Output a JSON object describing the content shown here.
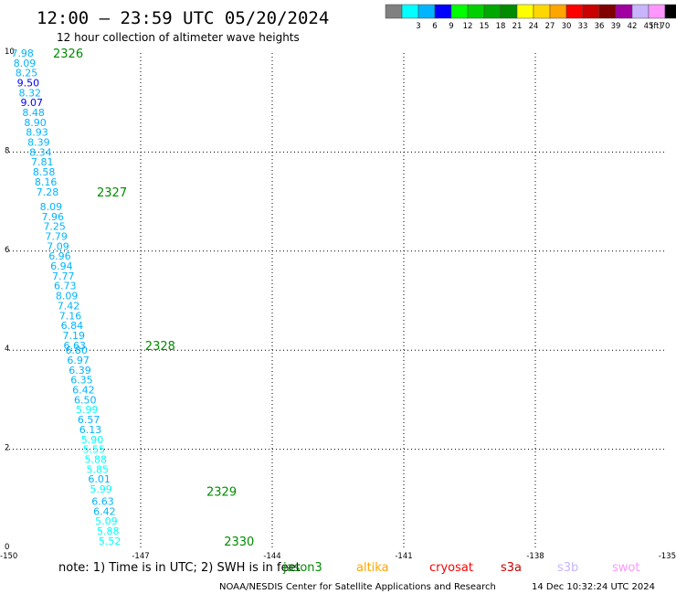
{
  "header": {
    "title": "12:00 – 23:59 UTC 05/20/2024",
    "subtitle": "12 hour collection of altimeter wave heights"
  },
  "legend": {
    "unit_label": "(ft)",
    "bins": [
      {
        "color": "#808080",
        "label": ""
      },
      {
        "color": "#00ffff",
        "label": "3"
      },
      {
        "color": "#00b4ff",
        "label": "6"
      },
      {
        "color": "#0000ff",
        "label": "9"
      },
      {
        "color": "#00ff00",
        "label": "12"
      },
      {
        "color": "#00d000",
        "label": "15"
      },
      {
        "color": "#00a800",
        "label": "18"
      },
      {
        "color": "#008c00",
        "label": "21"
      },
      {
        "color": "#ffff00",
        "label": "24"
      },
      {
        "color": "#ffd700",
        "label": "27"
      },
      {
        "color": "#ffa500",
        "label": "30"
      },
      {
        "color": "#ff0000",
        "label": "33"
      },
      {
        "color": "#c80000",
        "label": "36"
      },
      {
        "color": "#800000",
        "label": "39"
      },
      {
        "color": "#a000a0",
        "label": "42"
      },
      {
        "color": "#c8b4ff",
        "label": "45"
      },
      {
        "color": "#ff96ff",
        "label": "70"
      },
      {
        "color": "#000000",
        "label": ""
      }
    ]
  },
  "footer": {
    "note": "note:  1) Time is in UTC; 2) SWH is in feet",
    "satellites": [
      {
        "name": "jason3",
        "color": "#008c00"
      },
      {
        "name": "altika",
        "color": "#ffa500"
      },
      {
        "name": "cryosat",
        "color": "#ff0000"
      },
      {
        "name": "s3a",
        "color": "#c80000"
      },
      {
        "name": "s3b",
        "color": "#c8b4ff"
      },
      {
        "name": "swot",
        "color": "#ff96ff"
      }
    ],
    "credit": "NOAA/NESDIS Center for Satellite Applications and Research",
    "timestamp": "14 Dec 10:32:24 UTC 2024"
  },
  "chart_data": {
    "type": "scatter",
    "title": "12:00 – 23:59 UTC 05/20/2024",
    "subtitle": "12 hour collection of altimeter wave heights",
    "xlabel": "",
    "ylabel": "",
    "xlim": [
      -150,
      -135
    ],
    "ylim": [
      0,
      10
    ],
    "xticks": [
      "-150",
      "-147",
      "-144",
      "-141",
      "-138",
      "-135"
    ],
    "yticks": [
      "0",
      "2",
      "4",
      "6",
      "8",
      "10"
    ],
    "grid": true,
    "series": [
      {
        "name": "jason3",
        "points": [
          {
            "lon": -149.95,
            "lat": 10.0,
            "swh": "7.98"
          },
          {
            "lon": -149.9,
            "lat": 9.8,
            "swh": "8.09"
          },
          {
            "lon": -149.86,
            "lat": 9.6,
            "swh": "8.25"
          },
          {
            "lon": -149.82,
            "lat": 9.4,
            "swh": "9.50"
          },
          {
            "lon": -149.78,
            "lat": 9.2,
            "swh": "8.32"
          },
          {
            "lon": -149.74,
            "lat": 9.0,
            "swh": "9.07"
          },
          {
            "lon": -149.7,
            "lat": 8.8,
            "swh": "8.48"
          },
          {
            "lon": -149.66,
            "lat": 8.6,
            "swh": "8.90"
          },
          {
            "lon": -149.62,
            "lat": 8.4,
            "swh": "8.93"
          },
          {
            "lon": -149.58,
            "lat": 8.2,
            "swh": "8.39"
          },
          {
            "lon": -149.54,
            "lat": 8.0,
            "swh": "8.34"
          },
          {
            "lon": -149.5,
            "lat": 7.8,
            "swh": "7.81"
          },
          {
            "lon": -149.46,
            "lat": 7.6,
            "swh": "8.58"
          },
          {
            "lon": -149.42,
            "lat": 7.4,
            "swh": "8.16"
          },
          {
            "lon": -149.38,
            "lat": 7.2,
            "swh": "7.28"
          },
          {
            "lon": -149.3,
            "lat": 6.9,
            "swh": "8.09"
          },
          {
            "lon": -149.26,
            "lat": 6.7,
            "swh": "7.96"
          },
          {
            "lon": -149.22,
            "lat": 6.5,
            "swh": "7.25"
          },
          {
            "lon": -149.18,
            "lat": 6.3,
            "swh": "7.79"
          },
          {
            "lon": -149.14,
            "lat": 6.1,
            "swh": "7.09"
          },
          {
            "lon": -149.1,
            "lat": 5.9,
            "swh": "6.96"
          },
          {
            "lon": -149.06,
            "lat": 5.7,
            "swh": "6.94"
          },
          {
            "lon": -149.02,
            "lat": 5.5,
            "swh": "7.77"
          },
          {
            "lon": -148.98,
            "lat": 5.3,
            "swh": "6.73"
          },
          {
            "lon": -148.94,
            "lat": 5.1,
            "swh": "8.09"
          },
          {
            "lon": -148.9,
            "lat": 4.9,
            "swh": "7.42"
          },
          {
            "lon": -148.86,
            "lat": 4.7,
            "swh": "7.16"
          },
          {
            "lon": -148.82,
            "lat": 4.5,
            "swh": "6.84"
          },
          {
            "lon": -148.78,
            "lat": 4.3,
            "swh": "7.19"
          },
          {
            "lon": -148.76,
            "lat": 4.1,
            "swh": "6.63"
          },
          {
            "lon": -148.72,
            "lat": 4.0,
            "swh": "6.80"
          },
          {
            "lon": -148.68,
            "lat": 3.8,
            "swh": "6.97"
          },
          {
            "lon": -148.64,
            "lat": 3.6,
            "swh": "6.39"
          },
          {
            "lon": -148.6,
            "lat": 3.4,
            "swh": "6.35"
          },
          {
            "lon": -148.56,
            "lat": 3.2,
            "swh": "6.42"
          },
          {
            "lon": -148.52,
            "lat": 3.0,
            "swh": "6.50"
          },
          {
            "lon": -148.48,
            "lat": 2.8,
            "swh": "5.99"
          },
          {
            "lon": -148.44,
            "lat": 2.6,
            "swh": "6.57"
          },
          {
            "lon": -148.4,
            "lat": 2.4,
            "swh": "6.13"
          },
          {
            "lon": -148.36,
            "lat": 2.2,
            "swh": "5.90"
          },
          {
            "lon": -148.32,
            "lat": 2.0,
            "swh": "5.55"
          },
          {
            "lon": -148.28,
            "lat": 1.8,
            "swh": "5.88"
          },
          {
            "lon": -148.24,
            "lat": 1.6,
            "swh": "5.85"
          },
          {
            "lon": -148.2,
            "lat": 1.4,
            "swh": "6.01"
          },
          {
            "lon": -148.16,
            "lat": 1.2,
            "swh": "5.99"
          },
          {
            "lon": -148.12,
            "lat": 0.95,
            "swh": "6.63"
          },
          {
            "lon": -148.08,
            "lat": 0.75,
            "swh": "6.42"
          },
          {
            "lon": -148.04,
            "lat": 0.55,
            "swh": "5.09"
          },
          {
            "lon": -148.0,
            "lat": 0.35,
            "swh": "5.88"
          },
          {
            "lon": -147.96,
            "lat": 0.15,
            "swh": "5.52"
          }
        ]
      }
    ],
    "annotations": [
      {
        "text": "2326",
        "lon": -149.0,
        "lat": 10.0
      },
      {
        "text": "2327",
        "lon": -148.0,
        "lat": 7.2
      },
      {
        "text": "2328",
        "lon": -146.9,
        "lat": 4.1
      },
      {
        "text": "2329",
        "lon": -145.5,
        "lat": 1.15
      },
      {
        "text": "2330",
        "lon": -145.1,
        "lat": 0.15
      }
    ]
  }
}
